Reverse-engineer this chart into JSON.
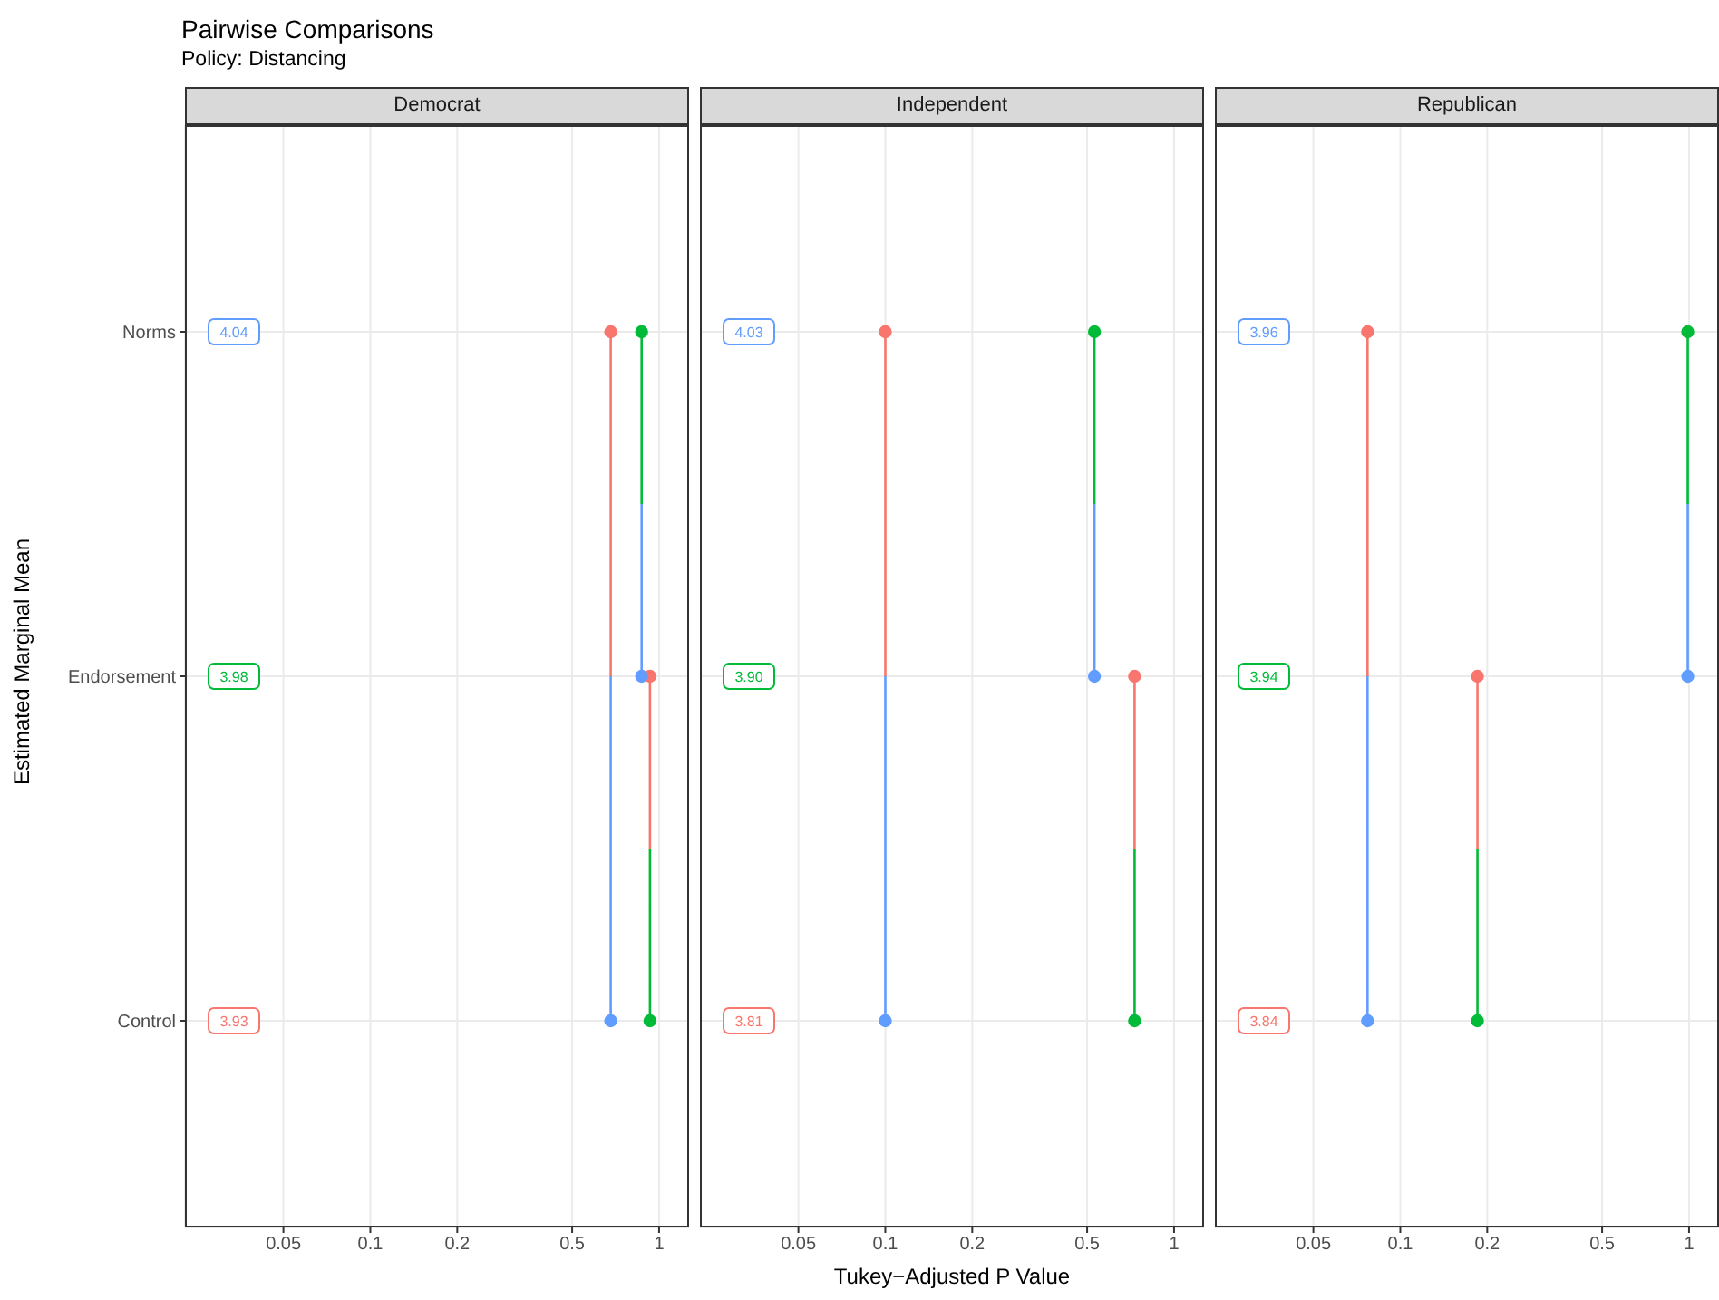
{
  "chart_data": [
    {
      "type": "line",
      "orientation": "horizontal",
      "title": "Democrat",
      "ylabel": "Estimated Marginal Mean",
      "log": "x",
      "grid": true,
      "marker": "circle",
      "line_style": "solid",
      "xlim": [
        0.0228,
        1.27
      ],
      "xticks": [
        0.05,
        0.1,
        0.2,
        0.5,
        1
      ],
      "categories": [
        "Norms",
        "Endorsement",
        "Control"
      ],
      "annotations": [
        "Pairwise Comparisons",
        "Policy: Distancing",
        {
          "text": "4.04",
          "y": "Norms"
        },
        {
          "text": "3.98",
          "y": "Endorsement"
        },
        {
          "text": "3.93",
          "y": "Control"
        }
      ],
      "series": [
        {
          "values": [
            0.68,
            null,
            0.68
          ],
          "colors": [
            "#f8766d",
            null,
            "#619cff"
          ]
        },
        {
          "values": [
            null,
            0.93,
            0.93
          ],
          "colors": [
            null,
            "#f8766d",
            "#00ba38"
          ]
        },
        {
          "values": [
            0.87,
            0.87,
            null
          ],
          "colors": [
            "#00ba38",
            "#619cff",
            null
          ]
        }
      ]
    },
    {
      "type": "line",
      "orientation": "horizontal",
      "title": "Independent",
      "xlabel": "Tukey−Adjusted P Value",
      "log": "x",
      "grid": true,
      "marker": "circle",
      "line_style": "solid",
      "tick_labels": "x",
      "xlim": [
        0.0228,
        1.27
      ],
      "xticks": [
        0.05,
        0.1,
        0.2,
        0.5,
        1
      ],
      "categories": [
        "Norms",
        "Endorsement",
        "Control"
      ],
      "annotations": [
        {
          "text": "4.03",
          "y": "Norms"
        },
        {
          "text": "3.90",
          "y": "Endorsement"
        },
        {
          "text": "3.81",
          "y": "Control"
        }
      ],
      "series": [
        {
          "values": [
            0.1,
            null,
            0.1
          ],
          "colors": [
            "#f8766d",
            null,
            "#619cff"
          ]
        },
        {
          "values": [
            null,
            0.73,
            0.73
          ],
          "colors": [
            null,
            "#f8766d",
            "#00ba38"
          ]
        },
        {
          "values": [
            0.53,
            0.53,
            null
          ],
          "colors": [
            "#00ba38",
            "#619cff",
            null
          ]
        }
      ]
    },
    {
      "type": "line",
      "orientation": "horizontal",
      "title": "Republican",
      "log": "x",
      "grid": true,
      "marker": "circle",
      "line_style": "solid",
      "tick_labels": "x",
      "xlim": [
        0.0228,
        1.27
      ],
      "xticks": [
        0.05,
        0.1,
        0.2,
        0.5,
        1
      ],
      "categories": [
        "Norms",
        "Endorsement",
        "Control"
      ],
      "annotations": [
        {
          "text": "3.96",
          "y": "Norms"
        },
        {
          "text": "3.94",
          "y": "Endorsement"
        },
        {
          "text": "3.84",
          "y": "Control"
        }
      ],
      "series": [
        {
          "values": [
            0.077,
            null,
            0.077
          ],
          "colors": [
            "#f8766d",
            null,
            "#619cff"
          ]
        },
        {
          "values": [
            null,
            0.185,
            0.185
          ],
          "colors": [
            null,
            "#f8766d",
            "#00ba38"
          ]
        },
        {
          "values": [
            0.99,
            0.99,
            null
          ],
          "colors": [
            "#00ba38",
            "#619cff",
            null
          ]
        }
      ]
    }
  ]
}
